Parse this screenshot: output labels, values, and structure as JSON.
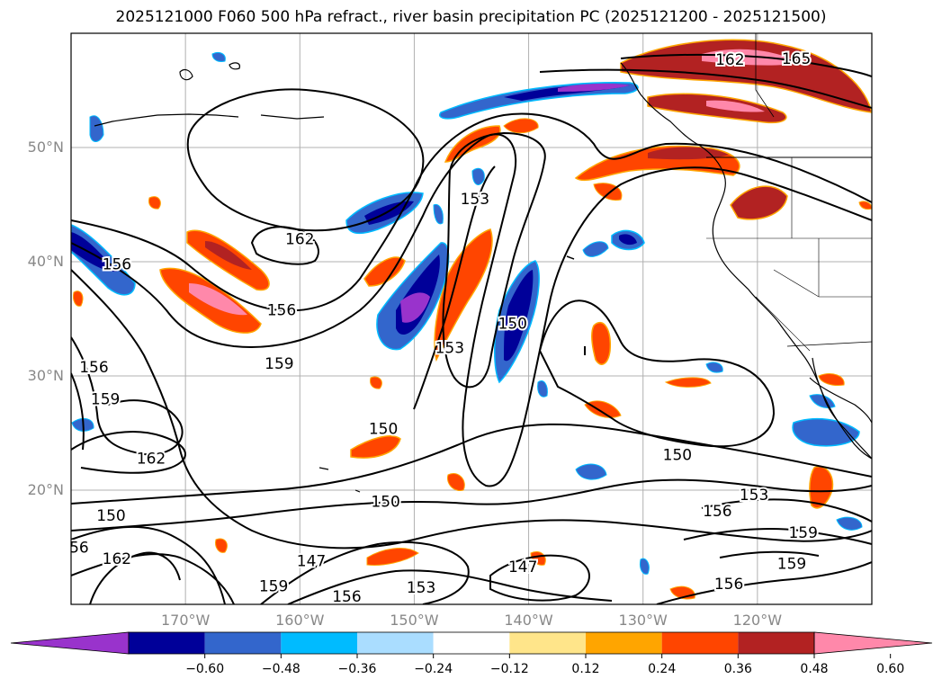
{
  "title": "2025121000 F060 500 hPa refract., river basin precipitation PC (2025121200 - 2025121500)",
  "map": {
    "lon_range": [
      -180,
      -110
    ],
    "lat_range": [
      10,
      60
    ],
    "lat_labels": [
      "50°N",
      "40°N",
      "30°N",
      "20°N"
    ],
    "lat_values": [
      50,
      40,
      30,
      20
    ],
    "lon_labels": [
      "170°W",
      "160°W",
      "150°W",
      "140°W",
      "130°W",
      "120°W"
    ],
    "lon_values": [
      -170,
      -160,
      -150,
      -140,
      -130,
      -120
    ],
    "gridlines": true,
    "contour_labels": [
      {
        "text": "162",
        "lon": -122.4,
        "lat": 57.7
      },
      {
        "text": "165",
        "lon": -116.6,
        "lat": 57.8
      },
      {
        "text": "153",
        "lon": -144.7,
        "lat": 45.5
      },
      {
        "text": "162",
        "lon": -160.0,
        "lat": 42.0
      },
      {
        "text": "156",
        "lon": -176.0,
        "lat": 39.8
      },
      {
        "text": "156",
        "lon": -161.6,
        "lat": 35.8
      },
      {
        "text": "159",
        "lon": -161.8,
        "lat": 31.1
      },
      {
        "text": "156",
        "lon": -178.0,
        "lat": 30.8
      },
      {
        "text": "159",
        "lon": -177.0,
        "lat": 28.0
      },
      {
        "text": "153",
        "lon": -146.9,
        "lat": 32.5
      },
      {
        "text": "150",
        "lon": -141.4,
        "lat": 34.6
      },
      {
        "text": "150",
        "lon": -152.7,
        "lat": 25.4
      },
      {
        "text": "162",
        "lon": -173.0,
        "lat": 22.8
      },
      {
        "text": "150",
        "lon": -127.0,
        "lat": 23.1
      },
      {
        "text": "150",
        "lon": -152.5,
        "lat": 19.0
      },
      {
        "text": "153",
        "lon": -120.3,
        "lat": 19.6
      },
      {
        "text": "156",
        "lon": -123.5,
        "lat": 18.2
      },
      {
        "text": "150",
        "lon": -176.5,
        "lat": 17.8
      },
      {
        "text": "56",
        "lon": -179.3,
        "lat": 15.0
      },
      {
        "text": "162",
        "lon": -176.0,
        "lat": 14.0
      },
      {
        "text": "147",
        "lon": -159.0,
        "lat": 13.8
      },
      {
        "text": "147",
        "lon": -140.5,
        "lat": 13.3
      },
      {
        "text": "159",
        "lon": -162.3,
        "lat": 11.6
      },
      {
        "text": "153",
        "lon": -149.4,
        "lat": 11.5
      },
      {
        "text": "156",
        "lon": -155.9,
        "lat": 10.7
      },
      {
        "text": "156",
        "lon": -122.5,
        "lat": 11.8
      },
      {
        "text": "159",
        "lon": -117.0,
        "lat": 13.6
      },
      {
        "text": "159",
        "lon": -116.0,
        "lat": 16.3
      }
    ]
  },
  "colorbar": {
    "colors": [
      "#9933cc",
      "#000099",
      "#3366cc",
      "#00bbff",
      "#aaddff",
      "#ffffff",
      "#ffe58a",
      "#ffa500",
      "#ff4500",
      "#b22222",
      "#ff88aa"
    ],
    "tick_labels": [
      "−0.60",
      "−0.48",
      "−0.36",
      "−0.24",
      "−0.12",
      "0.12",
      "0.24",
      "0.36",
      "0.48",
      "0.60"
    ],
    "extend": "both"
  }
}
